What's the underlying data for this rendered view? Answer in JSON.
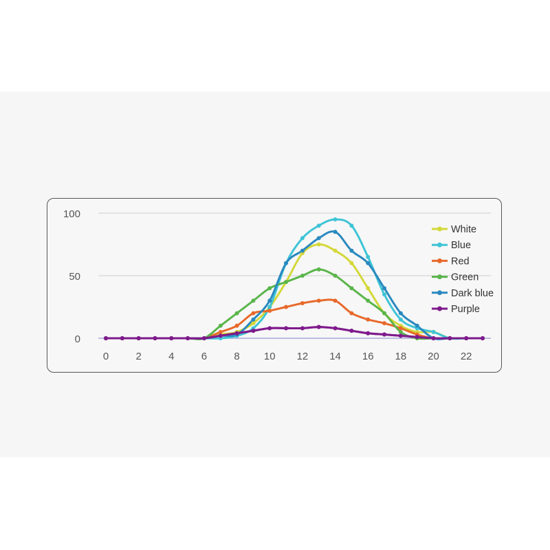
{
  "chart_data": {
    "type": "line",
    "title": "",
    "xlabel": "",
    "ylabel": "",
    "x": [
      0,
      1,
      2,
      3,
      4,
      5,
      6,
      7,
      8,
      9,
      10,
      11,
      12,
      13,
      14,
      15,
      16,
      17,
      18,
      19,
      20,
      21,
      22,
      23
    ],
    "xticks": [
      0,
      2,
      4,
      6,
      8,
      10,
      12,
      14,
      16,
      18,
      20,
      22
    ],
    "xlim": [
      0,
      23
    ],
    "yticks": [
      0,
      50,
      100
    ],
    "ylim": [
      0,
      100
    ],
    "grid": true,
    "legend_position": "right",
    "series": [
      {
        "name": "White",
        "color": "#d4d83a",
        "values": [
          0,
          0,
          0,
          0,
          0,
          0,
          0,
          3,
          5,
          12,
          25,
          45,
          68,
          75,
          70,
          60,
          40,
          20,
          10,
          5,
          5,
          0,
          0,
          0
        ]
      },
      {
        "name": "Blue",
        "color": "#3ec4d6",
        "values": [
          0,
          0,
          0,
          0,
          0,
          0,
          0,
          0,
          2,
          8,
          25,
          60,
          80,
          90,
          95,
          90,
          65,
          35,
          15,
          8,
          5,
          0,
          0,
          0
        ]
      },
      {
        "name": "Red",
        "color": "#e8692a",
        "values": [
          0,
          0,
          0,
          0,
          0,
          0,
          0,
          5,
          10,
          20,
          22,
          25,
          28,
          30,
          30,
          20,
          15,
          12,
          8,
          3,
          0,
          0,
          0,
          0
        ]
      },
      {
        "name": "Green",
        "color": "#5ab54a",
        "values": [
          0,
          0,
          0,
          0,
          0,
          0,
          0,
          10,
          20,
          30,
          40,
          45,
          50,
          55,
          50,
          40,
          30,
          20,
          5,
          0,
          0,
          0,
          0,
          0
        ]
      },
      {
        "name": "Dark blue",
        "color": "#2a89bf",
        "values": [
          0,
          0,
          0,
          0,
          0,
          0,
          0,
          2,
          3,
          15,
          30,
          60,
          70,
          80,
          85,
          70,
          60,
          40,
          20,
          10,
          0,
          0,
          0,
          0
        ]
      },
      {
        "name": "Purple",
        "color": "#7f1a8c",
        "values": [
          0,
          0,
          0,
          0,
          0,
          0,
          0,
          2,
          4,
          6,
          8,
          8,
          8,
          9,
          8,
          6,
          4,
          3,
          2,
          1,
          0,
          0,
          0,
          0
        ]
      }
    ]
  }
}
